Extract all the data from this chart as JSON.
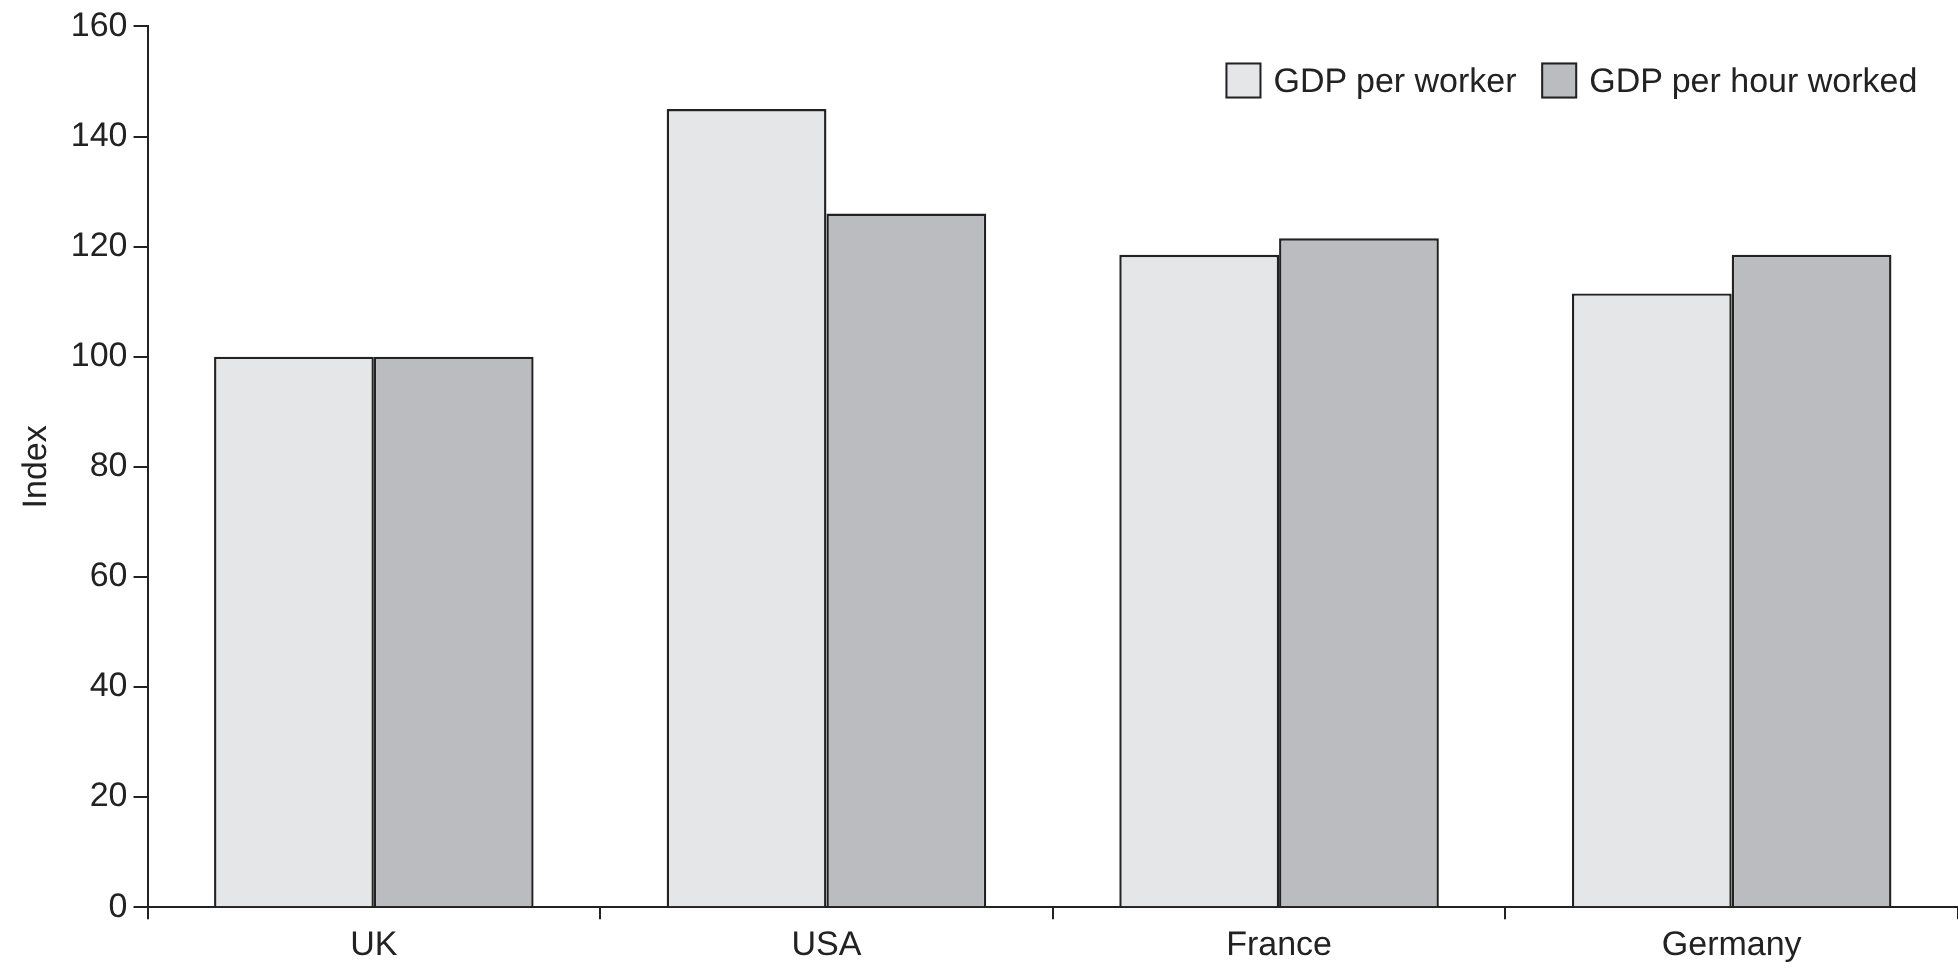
{
  "chart_data": {
    "type": "bar",
    "ylabel": "Index",
    "categories": [
      "UK",
      "USA",
      "France",
      "Germany"
    ],
    "series": [
      {
        "name": "GDP per worker",
        "color": "#e5e6e8",
        "values": [
          100,
          145,
          118.5,
          111.5
        ]
      },
      {
        "name": "GDP per hour worked",
        "color": "#bbbcc0",
        "values": [
          100,
          126,
          121.5,
          118.5
        ]
      }
    ],
    "ylim": [
      0,
      160
    ],
    "yticks": [
      0,
      20,
      40,
      60,
      80,
      100,
      120,
      140,
      160
    ],
    "grid": false,
    "legend": "top right"
  }
}
